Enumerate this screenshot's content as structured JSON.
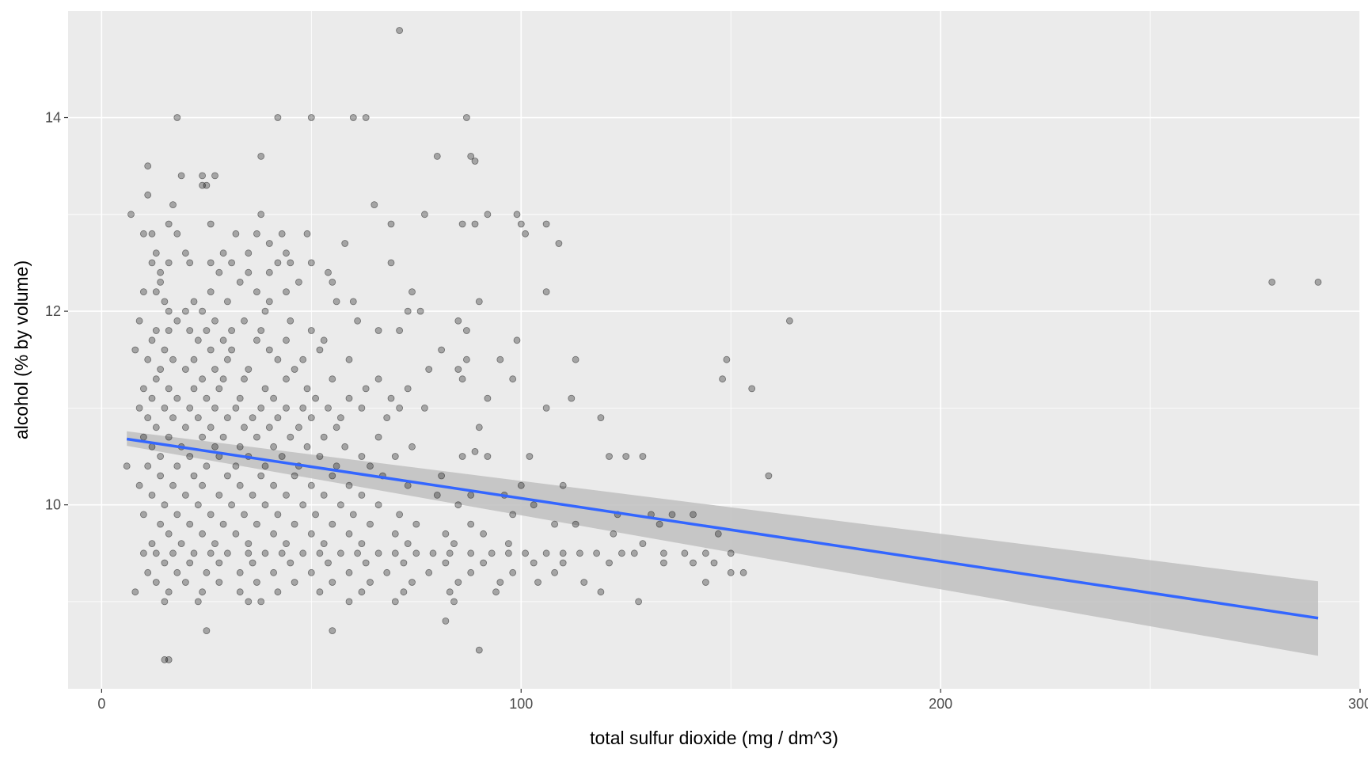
{
  "chart_data": {
    "type": "scatter",
    "title": "",
    "xlabel": "total sulfur dioxide (mg / dm^3)",
    "ylabel": "alcohol (% by volume)",
    "xlim": [
      -8,
      300
    ],
    "ylim": [
      8.1,
      15.1
    ],
    "x_ticks": [
      0,
      100,
      200,
      300
    ],
    "x_tick_labels": [
      "0",
      "100",
      "200",
      "300"
    ],
    "y_ticks": [
      10,
      12,
      14
    ],
    "y_tick_labels": [
      "10",
      "12",
      "14"
    ],
    "grid": true,
    "colors": {
      "panel_background": "#ebebeb",
      "grid_major": "#ffffff",
      "points": "#000000",
      "smooth_line": "#3366ff",
      "confidence_band": "#bfbfbf"
    },
    "points": [
      [
        71,
        14.9
      ],
      [
        18,
        14.0
      ],
      [
        42,
        14.0
      ],
      [
        50,
        14.0
      ],
      [
        60,
        14.0
      ],
      [
        63,
        14.0
      ],
      [
        87,
        14.0
      ],
      [
        38,
        13.6
      ],
      [
        80,
        13.6
      ],
      [
        88,
        13.6
      ],
      [
        89,
        13.55
      ],
      [
        11,
        13.5
      ],
      [
        19,
        13.4
      ],
      [
        24,
        13.4
      ],
      [
        27,
        13.4
      ],
      [
        11,
        13.2
      ],
      [
        24,
        13.3
      ],
      [
        25,
        13.3
      ],
      [
        17,
        13.1
      ],
      [
        65,
        13.1
      ],
      [
        7,
        13.0
      ],
      [
        38,
        13.0
      ],
      [
        77,
        13.0
      ],
      [
        92,
        13.0
      ],
      [
        99,
        13.0
      ],
      [
        16,
        12.9
      ],
      [
        26,
        12.9
      ],
      [
        69,
        12.9
      ],
      [
        86,
        12.9
      ],
      [
        89,
        12.9
      ],
      [
        100,
        12.9
      ],
      [
        106,
        12.9
      ],
      [
        10,
        12.8
      ],
      [
        12,
        12.8
      ],
      [
        18,
        12.8
      ],
      [
        32,
        12.8
      ],
      [
        37,
        12.8
      ],
      [
        43,
        12.8
      ],
      [
        49,
        12.8
      ],
      [
        101,
        12.8
      ],
      [
        40,
        12.7
      ],
      [
        58,
        12.7
      ],
      [
        109,
        12.7
      ],
      [
        13,
        12.6
      ],
      [
        20,
        12.6
      ],
      [
        29,
        12.6
      ],
      [
        35,
        12.6
      ],
      [
        44,
        12.6
      ],
      [
        12,
        12.5
      ],
      [
        16,
        12.5
      ],
      [
        21,
        12.5
      ],
      [
        26,
        12.5
      ],
      [
        31,
        12.5
      ],
      [
        42,
        12.5
      ],
      [
        45,
        12.5
      ],
      [
        50,
        12.5
      ],
      [
        69,
        12.5
      ],
      [
        14,
        12.4
      ],
      [
        28,
        12.4
      ],
      [
        35,
        12.4
      ],
      [
        40,
        12.4
      ],
      [
        54,
        12.4
      ],
      [
        14,
        12.3
      ],
      [
        33,
        12.3
      ],
      [
        47,
        12.3
      ],
      [
        55,
        12.3
      ],
      [
        10,
        12.2
      ],
      [
        13,
        12.2
      ],
      [
        26,
        12.2
      ],
      [
        37,
        12.2
      ],
      [
        44,
        12.2
      ],
      [
        74,
        12.2
      ],
      [
        106,
        12.2
      ],
      [
        15,
        12.1
      ],
      [
        22,
        12.1
      ],
      [
        30,
        12.1
      ],
      [
        40,
        12.1
      ],
      [
        56,
        12.1
      ],
      [
        60,
        12.1
      ],
      [
        90,
        12.1
      ],
      [
        16,
        12.0
      ],
      [
        20,
        12.0
      ],
      [
        24,
        12.0
      ],
      [
        39,
        12.0
      ],
      [
        73,
        12.0
      ],
      [
        76,
        12.0
      ],
      [
        9,
        11.9
      ],
      [
        18,
        11.9
      ],
      [
        27,
        11.9
      ],
      [
        34,
        11.9
      ],
      [
        45,
        11.9
      ],
      [
        61,
        11.9
      ],
      [
        85,
        11.9
      ],
      [
        164,
        11.9
      ],
      [
        13,
        11.8
      ],
      [
        16,
        11.8
      ],
      [
        21,
        11.8
      ],
      [
        25,
        11.8
      ],
      [
        31,
        11.8
      ],
      [
        38,
        11.8
      ],
      [
        50,
        11.8
      ],
      [
        66,
        11.8
      ],
      [
        71,
        11.8
      ],
      [
        87,
        11.8
      ],
      [
        12,
        11.7
      ],
      [
        23,
        11.7
      ],
      [
        29,
        11.7
      ],
      [
        37,
        11.7
      ],
      [
        44,
        11.7
      ],
      [
        53,
        11.7
      ],
      [
        99,
        11.7
      ],
      [
        8,
        11.6
      ],
      [
        15,
        11.6
      ],
      [
        26,
        11.6
      ],
      [
        31,
        11.6
      ],
      [
        40,
        11.6
      ],
      [
        52,
        11.6
      ],
      [
        81,
        11.6
      ],
      [
        11,
        11.5
      ],
      [
        17,
        11.5
      ],
      [
        22,
        11.5
      ],
      [
        30,
        11.5
      ],
      [
        42,
        11.5
      ],
      [
        48,
        11.5
      ],
      [
        59,
        11.5
      ],
      [
        87,
        11.5
      ],
      [
        95,
        11.5
      ],
      [
        113,
        11.5
      ],
      [
        149,
        11.5
      ],
      [
        14,
        11.4
      ],
      [
        20,
        11.4
      ],
      [
        27,
        11.4
      ],
      [
        35,
        11.4
      ],
      [
        46,
        11.4
      ],
      [
        78,
        11.4
      ],
      [
        85,
        11.4
      ],
      [
        13,
        11.3
      ],
      [
        24,
        11.3
      ],
      [
        29,
        11.3
      ],
      [
        34,
        11.3
      ],
      [
        44,
        11.3
      ],
      [
        55,
        11.3
      ],
      [
        66,
        11.3
      ],
      [
        86,
        11.3
      ],
      [
        98,
        11.3
      ],
      [
        148,
        11.3
      ],
      [
        10,
        11.2
      ],
      [
        16,
        11.2
      ],
      [
        22,
        11.2
      ],
      [
        28,
        11.2
      ],
      [
        39,
        11.2
      ],
      [
        49,
        11.2
      ],
      [
        63,
        11.2
      ],
      [
        73,
        11.2
      ],
      [
        155,
        11.2
      ],
      [
        12,
        11.1
      ],
      [
        18,
        11.1
      ],
      [
        25,
        11.1
      ],
      [
        33,
        11.1
      ],
      [
        41,
        11.1
      ],
      [
        51,
        11.1
      ],
      [
        59,
        11.1
      ],
      [
        69,
        11.1
      ],
      [
        92,
        11.1
      ],
      [
        112,
        11.1
      ],
      [
        9,
        11.0
      ],
      [
        15,
        11.0
      ],
      [
        21,
        11.0
      ],
      [
        27,
        11.0
      ],
      [
        32,
        11.0
      ],
      [
        38,
        11.0
      ],
      [
        44,
        11.0
      ],
      [
        48,
        11.0
      ],
      [
        54,
        11.0
      ],
      [
        62,
        11.0
      ],
      [
        71,
        11.0
      ],
      [
        77,
        11.0
      ],
      [
        106,
        11.0
      ],
      [
        11,
        10.9
      ],
      [
        17,
        10.9
      ],
      [
        23,
        10.9
      ],
      [
        30,
        10.9
      ],
      [
        36,
        10.9
      ],
      [
        42,
        10.9
      ],
      [
        50,
        10.9
      ],
      [
        57,
        10.9
      ],
      [
        68,
        10.9
      ],
      [
        119,
        10.9
      ],
      [
        13,
        10.8
      ],
      [
        20,
        10.8
      ],
      [
        26,
        10.8
      ],
      [
        34,
        10.8
      ],
      [
        40,
        10.8
      ],
      [
        47,
        10.8
      ],
      [
        56,
        10.8
      ],
      [
        90,
        10.8
      ],
      [
        10,
        10.7
      ],
      [
        16,
        10.7
      ],
      [
        24,
        10.7
      ],
      [
        29,
        10.7
      ],
      [
        37,
        10.7
      ],
      [
        45,
        10.7
      ],
      [
        53,
        10.7
      ],
      [
        66,
        10.7
      ],
      [
        12,
        10.6
      ],
      [
        19,
        10.6
      ],
      [
        27,
        10.6
      ],
      [
        33,
        10.6
      ],
      [
        41,
        10.6
      ],
      [
        49,
        10.6
      ],
      [
        58,
        10.6
      ],
      [
        74,
        10.6
      ],
      [
        89,
        10.55
      ],
      [
        14,
        10.5
      ],
      [
        21,
        10.5
      ],
      [
        28,
        10.5
      ],
      [
        35,
        10.5
      ],
      [
        43,
        10.5
      ],
      [
        52,
        10.5
      ],
      [
        62,
        10.5
      ],
      [
        70,
        10.5
      ],
      [
        86,
        10.5
      ],
      [
        92,
        10.5
      ],
      [
        102,
        10.5
      ],
      [
        121,
        10.5
      ],
      [
        125,
        10.5
      ],
      [
        129,
        10.5
      ],
      [
        6,
        10.4
      ],
      [
        11,
        10.4
      ],
      [
        18,
        10.4
      ],
      [
        25,
        10.4
      ],
      [
        32,
        10.4
      ],
      [
        39,
        10.4
      ],
      [
        47,
        10.4
      ],
      [
        56,
        10.4
      ],
      [
        64,
        10.4
      ],
      [
        14,
        10.3
      ],
      [
        22,
        10.3
      ],
      [
        30,
        10.3
      ],
      [
        38,
        10.3
      ],
      [
        46,
        10.3
      ],
      [
        55,
        10.3
      ],
      [
        67,
        10.3
      ],
      [
        81,
        10.3
      ],
      [
        159,
        10.3
      ],
      [
        9,
        10.2
      ],
      [
        17,
        10.2
      ],
      [
        24,
        10.2
      ],
      [
        33,
        10.2
      ],
      [
        41,
        10.2
      ],
      [
        50,
        10.2
      ],
      [
        59,
        10.2
      ],
      [
        73,
        10.2
      ],
      [
        100,
        10.2
      ],
      [
        110,
        10.2
      ],
      [
        12,
        10.1
      ],
      [
        20,
        10.1
      ],
      [
        28,
        10.1
      ],
      [
        36,
        10.1
      ],
      [
        44,
        10.1
      ],
      [
        53,
        10.1
      ],
      [
        62,
        10.1
      ],
      [
        80,
        10.1
      ],
      [
        88,
        10.1
      ],
      [
        96,
        10.1
      ],
      [
        15,
        10.0
      ],
      [
        23,
        10.0
      ],
      [
        31,
        10.0
      ],
      [
        39,
        10.0
      ],
      [
        48,
        10.0
      ],
      [
        57,
        10.0
      ],
      [
        66,
        10.0
      ],
      [
        85,
        10.0
      ],
      [
        103,
        10.0
      ],
      [
        10,
        9.9
      ],
      [
        18,
        9.9
      ],
      [
        26,
        9.9
      ],
      [
        34,
        9.9
      ],
      [
        42,
        9.9
      ],
      [
        51,
        9.9
      ],
      [
        60,
        9.9
      ],
      [
        71,
        9.9
      ],
      [
        98,
        9.9
      ],
      [
        123,
        9.9
      ],
      [
        131,
        9.9
      ],
      [
        136,
        9.9
      ],
      [
        141,
        9.9
      ],
      [
        14,
        9.8
      ],
      [
        21,
        9.8
      ],
      [
        29,
        9.8
      ],
      [
        37,
        9.8
      ],
      [
        46,
        9.8
      ],
      [
        55,
        9.8
      ],
      [
        64,
        9.8
      ],
      [
        75,
        9.8
      ],
      [
        88,
        9.8
      ],
      [
        108,
        9.8
      ],
      [
        113,
        9.8
      ],
      [
        133,
        9.8
      ],
      [
        16,
        9.7
      ],
      [
        24,
        9.7
      ],
      [
        32,
        9.7
      ],
      [
        41,
        9.7
      ],
      [
        50,
        9.7
      ],
      [
        59,
        9.7
      ],
      [
        70,
        9.7
      ],
      [
        82,
        9.7
      ],
      [
        91,
        9.7
      ],
      [
        122,
        9.7
      ],
      [
        147,
        9.7
      ],
      [
        12,
        9.6
      ],
      [
        19,
        9.6
      ],
      [
        27,
        9.6
      ],
      [
        35,
        9.6
      ],
      [
        44,
        9.6
      ],
      [
        53,
        9.6
      ],
      [
        62,
        9.6
      ],
      [
        73,
        9.6
      ],
      [
        84,
        9.6
      ],
      [
        97,
        9.6
      ],
      [
        129,
        9.6
      ],
      [
        10,
        9.5
      ],
      [
        13,
        9.5
      ],
      [
        17,
        9.5
      ],
      [
        22,
        9.5
      ],
      [
        26,
        9.5
      ],
      [
        30,
        9.5
      ],
      [
        35,
        9.5
      ],
      [
        39,
        9.5
      ],
      [
        43,
        9.5
      ],
      [
        48,
        9.5
      ],
      [
        52,
        9.5
      ],
      [
        57,
        9.5
      ],
      [
        61,
        9.5
      ],
      [
        66,
        9.5
      ],
      [
        70,
        9.5
      ],
      [
        75,
        9.5
      ],
      [
        79,
        9.5
      ],
      [
        83,
        9.5
      ],
      [
        88,
        9.5
      ],
      [
        93,
        9.5
      ],
      [
        97,
        9.5
      ],
      [
        101,
        9.5
      ],
      [
        106,
        9.5
      ],
      [
        110,
        9.5
      ],
      [
        114,
        9.5
      ],
      [
        118,
        9.5
      ],
      [
        124,
        9.5
      ],
      [
        127,
        9.5
      ],
      [
        134,
        9.5
      ],
      [
        139,
        9.5
      ],
      [
        144,
        9.5
      ],
      [
        150,
        9.5
      ],
      [
        15,
        9.4
      ],
      [
        21,
        9.4
      ],
      [
        28,
        9.4
      ],
      [
        36,
        9.4
      ],
      [
        45,
        9.4
      ],
      [
        54,
        9.4
      ],
      [
        63,
        9.4
      ],
      [
        72,
        9.4
      ],
      [
        82,
        9.4
      ],
      [
        91,
        9.4
      ],
      [
        103,
        9.4
      ],
      [
        110,
        9.4
      ],
      [
        121,
        9.4
      ],
      [
        134,
        9.4
      ],
      [
        141,
        9.4
      ],
      [
        146,
        9.4
      ],
      [
        11,
        9.3
      ],
      [
        18,
        9.3
      ],
      [
        25,
        9.3
      ],
      [
        33,
        9.3
      ],
      [
        41,
        9.3
      ],
      [
        50,
        9.3
      ],
      [
        59,
        9.3
      ],
      [
        68,
        9.3
      ],
      [
        78,
        9.3
      ],
      [
        88,
        9.3
      ],
      [
        98,
        9.3
      ],
      [
        108,
        9.3
      ],
      [
        150,
        9.3
      ],
      [
        153,
        9.3
      ],
      [
        13,
        9.2
      ],
      [
        20,
        9.2
      ],
      [
        28,
        9.2
      ],
      [
        37,
        9.2
      ],
      [
        46,
        9.2
      ],
      [
        55,
        9.2
      ],
      [
        64,
        9.2
      ],
      [
        74,
        9.2
      ],
      [
        85,
        9.2
      ],
      [
        95,
        9.2
      ],
      [
        104,
        9.2
      ],
      [
        115,
        9.2
      ],
      [
        144,
        9.2
      ],
      [
        8,
        9.1
      ],
      [
        16,
        9.1
      ],
      [
        24,
        9.1
      ],
      [
        33,
        9.1
      ],
      [
        42,
        9.1
      ],
      [
        52,
        9.1
      ],
      [
        62,
        9.1
      ],
      [
        72,
        9.1
      ],
      [
        83,
        9.1
      ],
      [
        94,
        9.1
      ],
      [
        119,
        9.1
      ],
      [
        15,
        9.0
      ],
      [
        23,
        9.0
      ],
      [
        35,
        9.0
      ],
      [
        38,
        9.0
      ],
      [
        59,
        9.0
      ],
      [
        70,
        9.0
      ],
      [
        84,
        9.0
      ],
      [
        128,
        9.0
      ],
      [
        82,
        8.8
      ],
      [
        25,
        8.7
      ],
      [
        55,
        8.7
      ],
      [
        90,
        8.5
      ],
      [
        15,
        8.4
      ],
      [
        16,
        8.4
      ],
      [
        279,
        12.3
      ],
      [
        290,
        12.3
      ]
    ],
    "smooth_line": {
      "method": "linear",
      "x": [
        6,
        290
      ],
      "y": [
        10.68,
        8.83
      ],
      "band_lower": [
        10.61,
        8.44
      ],
      "band_upper": [
        10.76,
        9.21
      ]
    }
  }
}
